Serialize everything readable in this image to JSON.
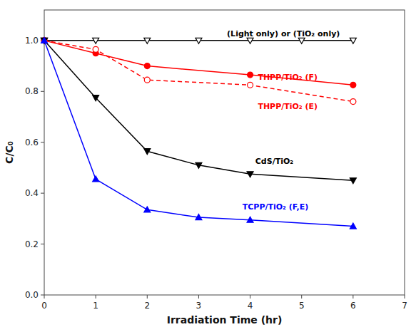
{
  "chart_data": {
    "type": "line",
    "x_label": "Irradiation Time (hr)",
    "y_label": "C/C₀",
    "xlim": [
      0,
      7
    ],
    "ylim": [
      0.0,
      1.12
    ],
    "xticks": [
      0,
      1,
      2,
      3,
      4,
      5,
      6,
      7
    ],
    "yticks": [
      {
        "value": 0.0,
        "label": "0.0"
      },
      0.2,
      0.4,
      0.6,
      0.8,
      {
        "value": 1.0,
        "label": "1.0"
      }
    ],
    "series": [
      {
        "color": "black",
        "line_style": "solid",
        "marker": "triangle-down-open",
        "x": [
          0,
          1,
          2,
          3,
          4,
          5,
          6
        ],
        "values": [
          1.0,
          1.0,
          1.0,
          1.0,
          1.0,
          1.0,
          1.0
        ]
      },
      {
        "color": "red",
        "line_style": "solid",
        "marker": "circle",
        "x": [
          0,
          1,
          2,
          4,
          6
        ],
        "values": [
          1.0,
          0.95,
          0.9,
          0.865,
          0.825
        ]
      },
      {
        "color": "red",
        "line_style": "dashed",
        "marker": "circle-open",
        "x": [
          0,
          1,
          2,
          4,
          6
        ],
        "values": [
          1.0,
          0.965,
          0.845,
          0.825,
          0.76
        ]
      },
      {
        "color": "black",
        "line_style": "solid",
        "marker": "triangle-down",
        "x": [
          0,
          1,
          2,
          3,
          4,
          6
        ],
        "values": [
          1.0,
          0.775,
          0.565,
          0.51,
          0.475,
          0.45
        ]
      },
      {
        "color": "blue",
        "line_style": "solid",
        "marker": "triangle-up",
        "x": [
          0,
          1,
          2,
          3,
          4,
          6
        ],
        "values": [
          1.0,
          0.455,
          0.335,
          0.305,
          0.295,
          0.27
        ]
      }
    ],
    "annotations": [
      {
        "text": "(Light only) or (TiO₂ only)",
        "x": 3.55,
        "y": 1.025,
        "color": "black"
      },
      {
        "text": "THPP/TiO₂ (F)",
        "x": 4.15,
        "y": 0.855,
        "color": "red"
      },
      {
        "text": "THPP/TiO₂ (E)",
        "x": 4.15,
        "y": 0.74,
        "color": "red"
      },
      {
        "text": "CdS/TiO₂",
        "x": 4.1,
        "y": 0.525,
        "color": "black"
      },
      {
        "text": "TCPP/TiO₂ (F,E)",
        "x": 3.85,
        "y": 0.345,
        "color": "blue"
      }
    ]
  }
}
